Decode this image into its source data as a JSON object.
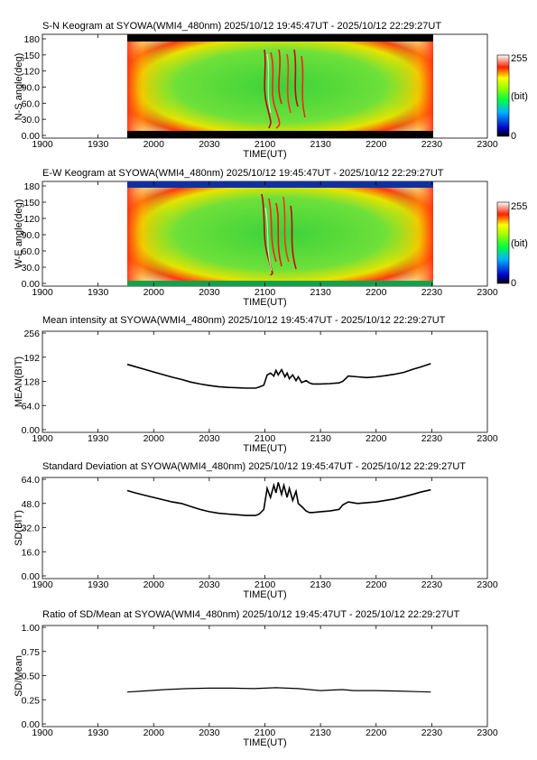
{
  "time_axis": {
    "ticks": [
      "1900",
      "1930",
      "2000",
      "2030",
      "2100",
      "2130",
      "2200",
      "2230",
      "2300"
    ],
    "label": "TIME(UT)"
  },
  "keograms": [
    {
      "title": "S-N Keogram at SYOWA(WMI4_480nm)   2025/10/12 19:45:47UT - 2025/10/12 22:29:27UT",
      "ylabel": "N-S angle(deg)",
      "yticks": [
        "180",
        "150",
        "120",
        "90.0",
        "60.0",
        "30.0",
        "0.00"
      ],
      "colorbar": {
        "max": "255",
        "unit": "(bit)",
        "min": "0"
      },
      "data_extent_time": [
        "19:45:47",
        "22:29:27"
      ],
      "band_colors": {
        "bottom": "#000000",
        "top": "#000000"
      }
    },
    {
      "title": "E-W Keogram at SYOWA(WMI4_480nm)   2025/10/12 19:45:47UT - 2025/10/12 22:29:27UT",
      "ylabel": "W-E angle(deg)",
      "yticks": [
        "180",
        "150",
        "120",
        "90.0",
        "60.0",
        "30.0",
        "0.00"
      ],
      "colorbar": {
        "max": "255",
        "unit": "(bit)",
        "min": "0"
      },
      "data_extent_time": [
        "19:45:47",
        "22:29:27"
      ],
      "band_colors": {
        "bottom": "#15a050",
        "top": "#1030a0"
      }
    }
  ],
  "chart_data": [
    {
      "type": "line",
      "title": "Mean intensity at SYOWA(WMI4_480nm)   2025/10/12 19:45:47UT - 2025/10/12 22:29:27UT",
      "xlabel": "TIME(UT)",
      "ylabel": "MEAN(BIT)",
      "yticks": [
        "256",
        "192",
        "128",
        "64.0",
        "0.00"
      ],
      "ylim": [
        0,
        256
      ],
      "xlim_hours": [
        19.0,
        23.0
      ],
      "series": [
        {
          "x_hours": [
            19.763,
            19.833,
            19.917,
            20.0,
            20.083,
            20.167,
            20.25,
            20.333,
            20.417,
            20.5,
            20.583,
            20.667,
            20.75,
            20.833,
            20.917,
            20.95,
            20.99,
            21.02,
            21.05,
            21.08,
            21.1,
            21.12,
            21.15,
            21.18,
            21.2,
            21.22,
            21.25,
            21.28,
            21.3,
            21.33,
            21.37,
            21.4,
            21.43,
            21.5,
            21.583,
            21.667,
            21.7,
            21.75,
            21.833,
            21.917,
            22.0,
            22.083,
            22.167,
            22.25,
            22.33,
            22.4,
            22.491
          ],
          "y": [
            173,
            167,
            160,
            153,
            146,
            139,
            133,
            126,
            121,
            117,
            114,
            112,
            111,
            110,
            110,
            113,
            118,
            145,
            150,
            142,
            157,
            145,
            159,
            140,
            150,
            135,
            145,
            130,
            140,
            125,
            130,
            124,
            121,
            121,
            122,
            124,
            128,
            142,
            140,
            138,
            140,
            143,
            147,
            152,
            160,
            166,
            175
          ]
        }
      ]
    },
    {
      "type": "line",
      "title": "Standard Deviation at SYOWA(WMI4_480nm)   2025/10/12 19:45:47UT - 2025/10/12 22:29:27UT",
      "xlabel": "TIME(UT)",
      "ylabel": "SD(BIT)",
      "yticks": [
        "64.0",
        "48.0",
        "32.0",
        "16.0",
        "0.00"
      ],
      "ylim": [
        0,
        64
      ],
      "xlim_hours": [
        19.0,
        23.0
      ],
      "series": [
        {
          "x_hours": [
            19.763,
            19.833,
            19.917,
            20.0,
            20.083,
            20.167,
            20.25,
            20.333,
            20.417,
            20.5,
            20.583,
            20.667,
            20.75,
            20.833,
            20.917,
            20.95,
            20.99,
            21.02,
            21.05,
            21.08,
            21.1,
            21.12,
            21.15,
            21.17,
            21.2,
            21.22,
            21.25,
            21.28,
            21.3,
            21.33,
            21.37,
            21.4,
            21.43,
            21.5,
            21.583,
            21.667,
            21.7,
            21.75,
            21.833,
            21.917,
            22.0,
            22.083,
            22.167,
            22.25,
            22.33,
            22.4,
            22.491
          ],
          "y": [
            56.5,
            55,
            53.5,
            52,
            50.5,
            49,
            48,
            46,
            44,
            42.5,
            41.5,
            41,
            40.5,
            40,
            40,
            41,
            44,
            58,
            52,
            60,
            55,
            62,
            54,
            60,
            52,
            58,
            50,
            56,
            48,
            46,
            43,
            42,
            42,
            42.5,
            43,
            44,
            47,
            49,
            48,
            48.5,
            49,
            50,
            51,
            52.5,
            54,
            55.5,
            57
          ]
        }
      ]
    },
    {
      "type": "line",
      "title": "Ratio of SD/Mean at SYOWA(WMI4_480nm)   2025/10/12 19:45:47UT - 2025/10/12 22:29:27UT",
      "xlabel": "TIME(UT)",
      "ylabel": "SD/Mean",
      "yticks": [
        "1.00",
        "0.75",
        "0.50",
        "0.25",
        "0.00"
      ],
      "ylim": [
        0,
        1
      ],
      "xlim_hours": [
        19.0,
        23.0
      ],
      "series": [
        {
          "x_hours": [
            19.763,
            19.9,
            20.1,
            20.3,
            20.5,
            20.7,
            20.9,
            21.0,
            21.1,
            21.2,
            21.3,
            21.4,
            21.5,
            21.6,
            21.7,
            21.8,
            22.0,
            22.2,
            22.35,
            22.491
          ],
          "y": [
            0.33,
            0.34,
            0.355,
            0.365,
            0.37,
            0.37,
            0.365,
            0.37,
            0.375,
            0.37,
            0.365,
            0.355,
            0.345,
            0.35,
            0.355,
            0.345,
            0.345,
            0.34,
            0.335,
            0.33
          ]
        }
      ]
    }
  ]
}
